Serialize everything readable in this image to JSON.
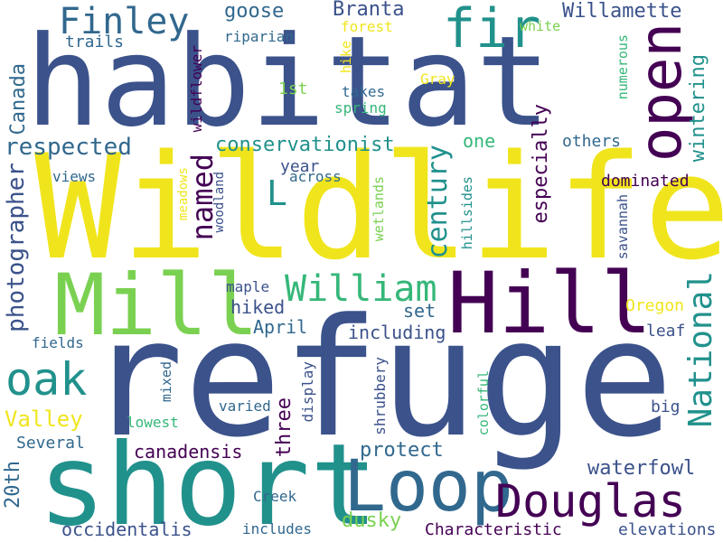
{
  "palette": {
    "dark_purple": "#440154",
    "indigo": "#3b528b",
    "slate_blue": "#31688e",
    "teal": "#21918c",
    "green": "#35b779",
    "light_green": "#7ad151",
    "yellow": "#f0e51c"
  },
  "words": {
    "habitat": "habitat",
    "wildlife": "Wildlife",
    "refuge": "refuge",
    "mill": "Mill",
    "hill": "Hill",
    "short": "short",
    "loop": "Loop",
    "douglas": "Douglas",
    "fir": "fir",
    "open": "open",
    "finley": "Finley",
    "william": "William",
    "oak": "oak",
    "named": "named",
    "national": "National",
    "century": "century",
    "valley": "Valley",
    "photographer": "photographer",
    "respected": "respected",
    "conservationist": "conservationist",
    "branta": "Branta",
    "willamette": "Willamette",
    "canada": "Canada",
    "goose": "goose",
    "trails": "trails",
    "riparian": "riparian",
    "forest": "forest",
    "white": "white",
    "hike": "hike",
    "first": "1st",
    "takes": "takes",
    "spring": "spring",
    "gray": "Gray",
    "numerous": "numerous",
    "wintering": "wintering",
    "wildflower": "wildflower",
    "especially": "especially",
    "others": "others",
    "one": "one",
    "year": "year",
    "l": "L",
    "across": "across",
    "views": "views",
    "meadows": "meadows",
    "woodland": "woodland",
    "wetlands": "wetlands",
    "hillsides": "hillsides",
    "savannah": "savannah",
    "dominated": "dominated",
    "maple": "maple",
    "hiked": "hiked",
    "april": "April",
    "set": "set",
    "including": "including",
    "oregon": "Oregon",
    "leaf": "leaf",
    "fields": "fields",
    "mixed": "mixed",
    "display": "display",
    "shrubbery": "shrubbery",
    "colorful": "colorful",
    "varied": "varied",
    "three": "three",
    "big": "big",
    "lowest": "lowest",
    "twentieth": "20th",
    "several": "Several",
    "canadensis": "canadensis",
    "protect": "protect",
    "waterfowl": "waterfowl",
    "creek": "Creek",
    "dusky": "dusky",
    "occidentalis": "occidentalis",
    "includes": "includes",
    "characteristic": "Characteristic",
    "elevations": "elevations"
  }
}
